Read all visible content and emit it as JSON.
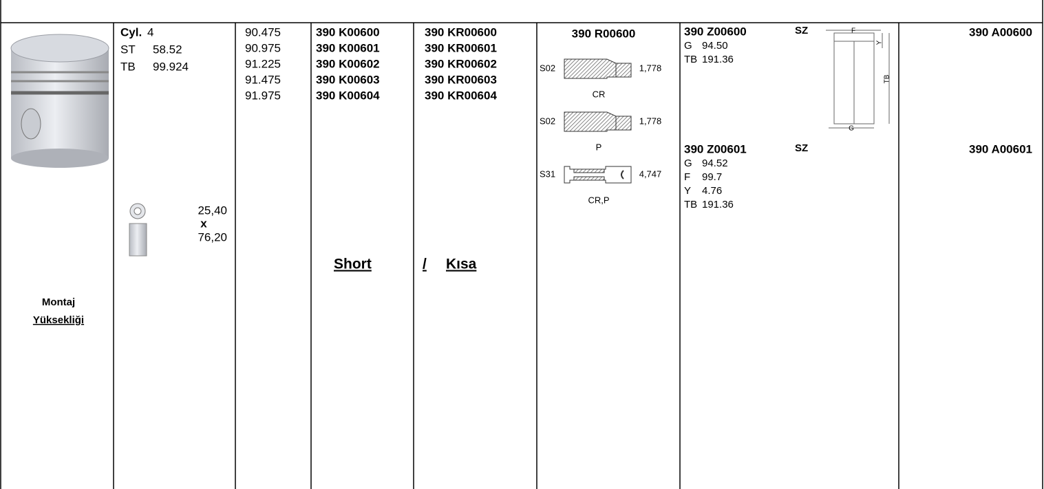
{
  "piston": {
    "caption": [
      "Montaj",
      "Yüksekliği"
    ]
  },
  "specs": [
    {
      "label": "Cyl.",
      "value": "4"
    },
    {
      "label": "ST",
      "value": "58.52"
    },
    {
      "label": "TB",
      "value": "99.924"
    }
  ],
  "pin": {
    "diameter": "25,40",
    "times": "x",
    "length": "76,20"
  },
  "diameters": [
    "90.475",
    "90.975",
    "91.225",
    "91.475",
    "91.975"
  ],
  "pistons": [
    "390 K00600",
    "390 K00601",
    "390 K00602",
    "390 K00603",
    "390 K00604"
  ],
  "kits": [
    "390 KR00600",
    "390 KR00601",
    "390 KR00602",
    "390 KR00603",
    "390 KR00604"
  ],
  "note": {
    "short": "Short",
    "separator": "/",
    "kisa": "Kısa"
  },
  "rings": {
    "code": "390 R00600",
    "items": [
      {
        "type": "S02",
        "size": "1,778",
        "label": "CR"
      },
      {
        "type": "S02",
        "size": "1,778",
        "label": "P"
      },
      {
        "type": "S31",
        "size": "4,747",
        "label": "CR,P"
      }
    ]
  },
  "liners": [
    {
      "code": "390 Z00600",
      "tag": "SZ",
      "specs": [
        {
          "key": "G",
          "value": "94.50"
        },
        {
          "key": "TB",
          "value": "191.36"
        }
      ]
    },
    {
      "code": "390 Z00601",
      "tag": "SZ",
      "specs": [
        {
          "key": "G",
          "value": "94.52"
        },
        {
          "key": "F",
          "value": "99.7"
        },
        {
          "key": "Y",
          "value": "4.76"
        },
        {
          "key": "TB",
          "value": "191.36"
        }
      ]
    }
  ],
  "liner_diagram": {
    "labels": {
      "f": "F",
      "y": "Y",
      "tb": "TB",
      "g": "G"
    }
  },
  "gaskets": [
    "390 A00600",
    "390 A00601"
  ]
}
